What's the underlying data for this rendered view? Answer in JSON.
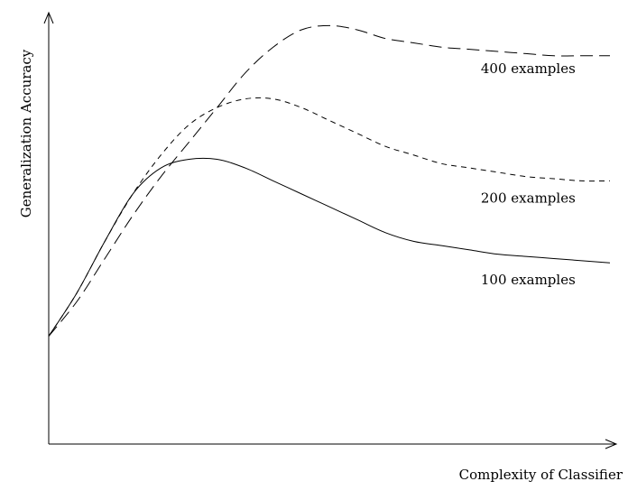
{
  "chart_data": {
    "type": "line",
    "xlabel": "Complexity of Classifier",
    "ylabel": "Generalization Accuracy",
    "xlim": [
      0,
      1
    ],
    "ylim": [
      0,
      1
    ],
    "axis_ticks": false,
    "grid": false,
    "series": [
      {
        "name": "400 examples",
        "line_style": "long-dash",
        "x": [
          0.0,
          0.05,
          0.1,
          0.15,
          0.2,
          0.25,
          0.3,
          0.35,
          0.4,
          0.45,
          0.5,
          0.55,
          0.6,
          0.65,
          0.7,
          0.75,
          0.8,
          0.85,
          0.9,
          0.95,
          1.0
        ],
        "values": [
          0.25,
          0.33,
          0.43,
          0.53,
          0.62,
          0.7,
          0.78,
          0.86,
          0.92,
          0.96,
          0.97,
          0.96,
          0.94,
          0.93,
          0.92,
          0.915,
          0.91,
          0.905,
          0.9,
          0.9,
          0.9
        ]
      },
      {
        "name": "200 examples",
        "line_style": "dash",
        "x": [
          0.0,
          0.05,
          0.1,
          0.15,
          0.2,
          0.25,
          0.3,
          0.35,
          0.4,
          0.45,
          0.5,
          0.55,
          0.6,
          0.65,
          0.7,
          0.75,
          0.8,
          0.85,
          0.9,
          0.95,
          1.0
        ],
        "values": [
          0.25,
          0.35,
          0.47,
          0.58,
          0.67,
          0.74,
          0.78,
          0.8,
          0.8,
          0.78,
          0.75,
          0.72,
          0.69,
          0.67,
          0.65,
          0.64,
          0.63,
          0.62,
          0.615,
          0.61,
          0.61
        ]
      },
      {
        "name": "100 examples",
        "line_style": "solid",
        "x": [
          0.0,
          0.05,
          0.1,
          0.15,
          0.2,
          0.25,
          0.3,
          0.35,
          0.4,
          0.45,
          0.5,
          0.55,
          0.6,
          0.65,
          0.7,
          0.75,
          0.8,
          0.85,
          0.9,
          0.95,
          1.0
        ],
        "values": [
          0.25,
          0.35,
          0.47,
          0.58,
          0.64,
          0.66,
          0.66,
          0.64,
          0.61,
          0.58,
          0.55,
          0.52,
          0.49,
          0.47,
          0.46,
          0.45,
          0.44,
          0.435,
          0.43,
          0.425,
          0.42
        ]
      }
    ],
    "series_labels": [
      {
        "series": "400 examples",
        "text": "400 examples",
        "at_x": 0.77,
        "at_y": 0.86
      },
      {
        "series": "200 examples",
        "text": "200 examples",
        "at_x": 0.77,
        "at_y": 0.56
      },
      {
        "series": "100 examples",
        "text": "100 examples",
        "at_x": 0.77,
        "at_y": 0.37
      }
    ]
  }
}
